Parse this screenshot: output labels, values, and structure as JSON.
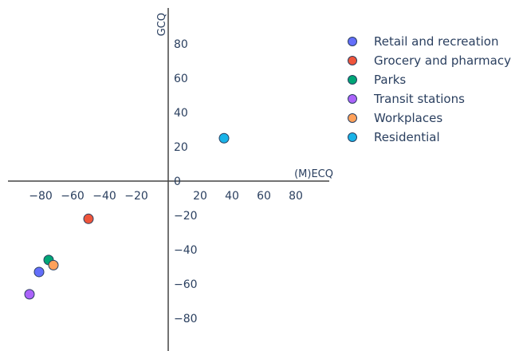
{
  "chart_data": {
    "type": "scatter",
    "xlabel": "(M)ECQ",
    "ylabel": "GCQ",
    "xlim": [
      -100,
      100
    ],
    "ylim": [
      -100,
      100
    ],
    "x_ticks": [
      -80,
      -60,
      -40,
      -20,
      20,
      40,
      60,
      80
    ],
    "y_ticks": [
      80,
      60,
      40,
      20,
      0,
      -20,
      -40,
      -60,
      -80
    ],
    "grid": false,
    "legend_position": "right",
    "series": [
      {
        "name": "Retail and recreation",
        "color": "#636efa",
        "points": [
          {
            "x": -81,
            "y": -53
          }
        ]
      },
      {
        "name": "Grocery and pharmacy",
        "color": "#ef553b",
        "points": [
          {
            "x": -50,
            "y": -22
          }
        ]
      },
      {
        "name": "Parks",
        "color": "#00a676",
        "points": [
          {
            "x": -75,
            "y": -46
          }
        ]
      },
      {
        "name": "Transit stations",
        "color": "#ab63fa",
        "points": [
          {
            "x": -87,
            "y": -66
          }
        ]
      },
      {
        "name": "Workplaces",
        "color": "#ffa15a",
        "points": [
          {
            "x": -72,
            "y": -49
          }
        ]
      },
      {
        "name": "Residential",
        "color": "#19b3e8",
        "points": [
          {
            "x": 35,
            "y": 25
          }
        ]
      }
    ]
  }
}
